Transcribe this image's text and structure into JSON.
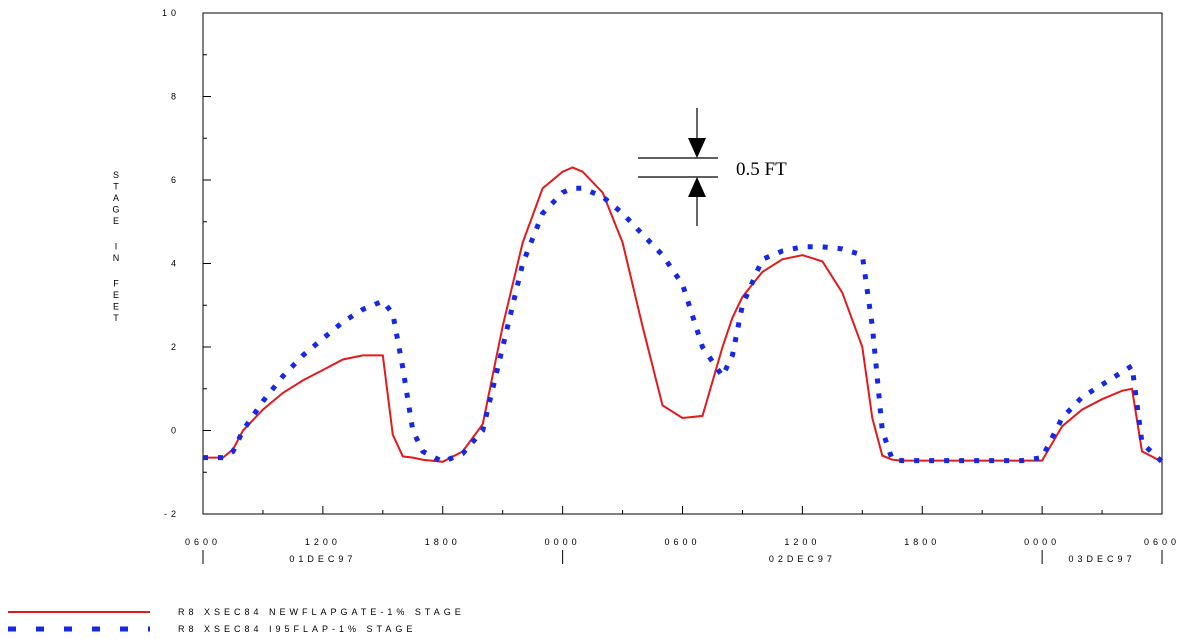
{
  "chart_data": {
    "type": "line",
    "ylabel": "STAGE IN FEET",
    "ylim": [
      -2,
      10
    ],
    "y_ticks": [
      "10",
      "8",
      "6",
      "4",
      "2",
      "0",
      "-2"
    ],
    "xlim": [
      "1997-12-01T06:00",
      "1997-12-03T06:00"
    ],
    "x_ticks": [
      {
        "label": "0600",
        "t": "1997-12-01T06:00"
      },
      {
        "label": "1200",
        "t": "1997-12-01T12:00"
      },
      {
        "label": "1800",
        "t": "1997-12-01T18:00"
      },
      {
        "label": "0000",
        "t": "1997-12-02T00:00"
      },
      {
        "label": "0600",
        "t": "1997-12-02T06:00"
      },
      {
        "label": "1200",
        "t": "1997-12-02T12:00"
      },
      {
        "label": "1800",
        "t": "1997-12-02T18:00"
      },
      {
        "label": "0000",
        "t": "1997-12-03T00:00"
      },
      {
        "label": "0600",
        "t": "1997-12-03T06:00"
      }
    ],
    "date_labels": [
      {
        "label": "01DEC97",
        "t": "1997-12-01T12:00"
      },
      {
        "label": "02DEC97",
        "t": "1997-12-02T12:00"
      },
      {
        "label": "03DEC97",
        "t": "1997-12-03T03:00"
      }
    ],
    "x": [
      "1997-12-01T06:00",
      "1997-12-01T07:00",
      "1997-12-01T07:30",
      "1997-12-01T08:00",
      "1997-12-01T09:00",
      "1997-12-01T10:00",
      "1997-12-01T11:00",
      "1997-12-01T12:00",
      "1997-12-01T13:00",
      "1997-12-01T14:00",
      "1997-12-01T15:00",
      "1997-12-01T15:30",
      "1997-12-01T16:00",
      "1997-12-01T16:30",
      "1997-12-01T17:00",
      "1997-12-01T18:00",
      "1997-12-01T19:00",
      "1997-12-01T20:00",
      "1997-12-01T21:00",
      "1997-12-01T22:00",
      "1997-12-01T23:00",
      "1997-12-02T00:00",
      "1997-12-02T00:30",
      "1997-12-02T01:00",
      "1997-12-02T02:00",
      "1997-12-02T03:00",
      "1997-12-02T04:00",
      "1997-12-02T05:00",
      "1997-12-02T06:00",
      "1997-12-02T07:00",
      "1997-12-02T08:00",
      "1997-12-02T08:30",
      "1997-12-02T09:00",
      "1997-12-02T10:00",
      "1997-12-02T11:00",
      "1997-12-02T12:00",
      "1997-12-02T13:00",
      "1997-12-02T14:00",
      "1997-12-02T15:00",
      "1997-12-02T15:30",
      "1997-12-02T16:00",
      "1997-12-02T16:30",
      "1997-12-02T17:00",
      "1997-12-02T18:00",
      "1997-12-02T19:00",
      "1997-12-02T20:00",
      "1997-12-02T21:00",
      "1997-12-02T22:00",
      "1997-12-02T23:00",
      "1997-12-03T00:00",
      "1997-12-03T01:00",
      "1997-12-03T02:00",
      "1997-12-03T03:00",
      "1997-12-03T04:00",
      "1997-12-03T04:30",
      "1997-12-03T05:00",
      "1997-12-03T06:00"
    ],
    "series": [
      {
        "name": "R8 XSEC84 NEWFLAPGATE-1% STAGE",
        "color": "#e31a1c",
        "style": "solid",
        "values": [
          -0.65,
          -0.65,
          -0.45,
          0.0,
          0.5,
          0.9,
          1.2,
          1.45,
          1.7,
          1.8,
          1.8,
          -0.1,
          -0.62,
          -0.65,
          -0.7,
          -0.75,
          -0.5,
          0.15,
          2.5,
          4.5,
          5.8,
          6.2,
          6.3,
          6.2,
          5.7,
          4.5,
          2.5,
          0.6,
          0.3,
          0.35,
          2.0,
          2.7,
          3.2,
          3.8,
          4.1,
          4.2,
          4.05,
          3.3,
          2.0,
          0.3,
          -0.6,
          -0.7,
          -0.72,
          -0.72,
          -0.72,
          -0.72,
          -0.72,
          -0.72,
          -0.72,
          -0.72,
          0.1,
          0.5,
          0.75,
          0.95,
          1.0,
          -0.5,
          -0.75
        ]
      },
      {
        "name": "R8 XSEC84 I95FLAP-1% STAGE",
        "color": "#1428e6",
        "style": "dotted",
        "values": [
          -0.65,
          -0.65,
          -0.5,
          0.0,
          0.7,
          1.3,
          1.8,
          2.2,
          2.6,
          2.9,
          3.1,
          2.8,
          1.5,
          0.0,
          -0.5,
          -0.75,
          -0.55,
          0.0,
          2.0,
          4.0,
          5.2,
          5.7,
          5.8,
          5.8,
          5.6,
          5.2,
          4.7,
          4.2,
          3.5,
          2.0,
          1.3,
          1.8,
          3.0,
          4.1,
          4.3,
          4.4,
          4.4,
          4.35,
          4.2,
          2.5,
          0.0,
          -0.7,
          -0.72,
          -0.72,
          -0.72,
          -0.72,
          -0.72,
          -0.72,
          -0.72,
          -0.65,
          0.3,
          0.8,
          1.1,
          1.4,
          1.55,
          -0.3,
          -0.75
        ]
      }
    ],
    "annotation": {
      "text": "0.5 FT"
    },
    "legend": {
      "position": "bottom-left"
    }
  }
}
